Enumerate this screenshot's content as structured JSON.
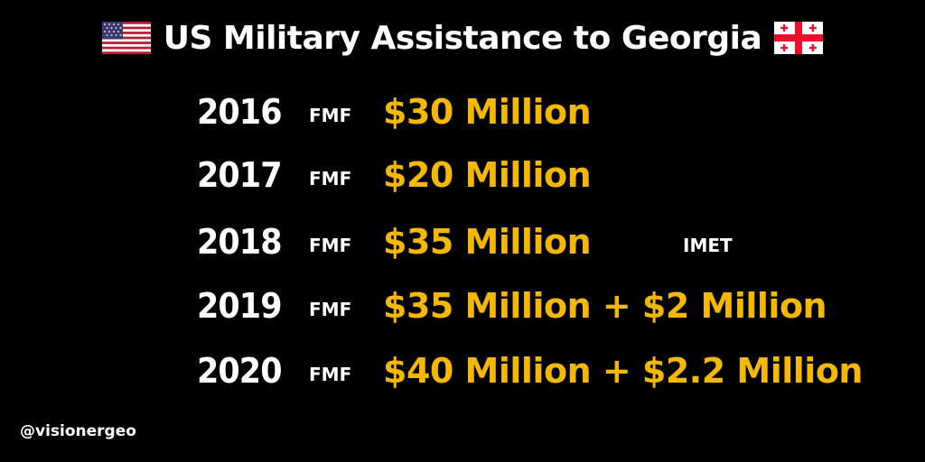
{
  "title": "US Military Assistance to Georgia",
  "flags": {
    "left": "us-flag-icon",
    "right": "georgia-flag-icon"
  },
  "colors": {
    "background": "#000000",
    "text": "#ffffff",
    "accent": "#f5b800",
    "us_red": "#b22234",
    "us_blue": "#3c3b6e",
    "georgia_red": "#e8112d"
  },
  "rows": [
    {
      "year": "2016",
      "label": "FMF",
      "amount": "$30 Million",
      "extra": ""
    },
    {
      "year": "2017",
      "label": "FMF",
      "amount": "$20 Million",
      "extra": ""
    },
    {
      "year": "2018",
      "label": "FMF",
      "amount": "$35 Million",
      "extra": "IMET"
    },
    {
      "year": "2019",
      "label": "FMF",
      "amount": "$35 Million + $2 Million",
      "extra": ""
    },
    {
      "year": "2020",
      "label": "FMF",
      "amount": "$40 Million + $2.2 Million",
      "extra": ""
    }
  ],
  "handle": "@visionergeo"
}
